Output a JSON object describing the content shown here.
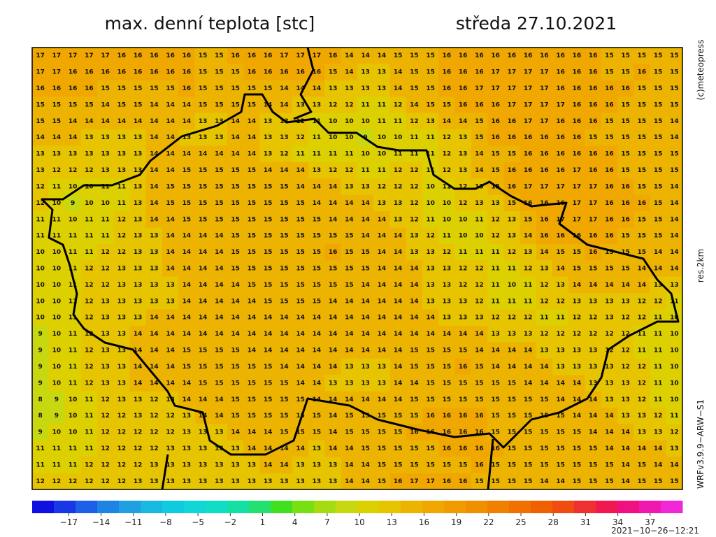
{
  "header": {
    "title": "max. denní teplota [stc]",
    "date": "středa 27.10.2021"
  },
  "side": {
    "copyright": "(c)meteopress",
    "resolution": "res.2km",
    "model": "WRFv3.9.9−ARW−S1"
  },
  "footer": {
    "timestamp": "2021−10−26−12:21"
  },
  "grid": {
    "values": [
      [
        17,
        17,
        17,
        17,
        17,
        16,
        16,
        16,
        16,
        16,
        15,
        15,
        16,
        16,
        16,
        17,
        17,
        17,
        16,
        14,
        14,
        14,
        15,
        15,
        15,
        16,
        16,
        16,
        16,
        16,
        16,
        16,
        16,
        16,
        16,
        15,
        15,
        15,
        15,
        15
      ],
      [
        17,
        17,
        16,
        16,
        16,
        16,
        16,
        16,
        16,
        16,
        15,
        15,
        15,
        16,
        16,
        16,
        16,
        16,
        15,
        14,
        13,
        13,
        14,
        15,
        15,
        16,
        16,
        16,
        17,
        17,
        17,
        17,
        16,
        16,
        16,
        15,
        15,
        16,
        15,
        15
      ],
      [
        16,
        16,
        16,
        16,
        15,
        15,
        15,
        15,
        15,
        16,
        15,
        15,
        15,
        15,
        15,
        14,
        14,
        14,
        13,
        13,
        13,
        13,
        14,
        15,
        15,
        16,
        16,
        17,
        17,
        17,
        17,
        17,
        16,
        16,
        16,
        16,
        16,
        15,
        15,
        15
      ],
      [
        15,
        15,
        15,
        15,
        14,
        15,
        15,
        14,
        14,
        14,
        15,
        15,
        15,
        15,
        14,
        14,
        13,
        13,
        12,
        12,
        11,
        11,
        12,
        14,
        15,
        15,
        16,
        16,
        16,
        17,
        17,
        17,
        17,
        16,
        16,
        16,
        15,
        15,
        15,
        15
      ],
      [
        15,
        15,
        14,
        14,
        14,
        14,
        14,
        14,
        14,
        14,
        13,
        13,
        14,
        14,
        13,
        13,
        12,
        11,
        10,
        10,
        10,
        11,
        11,
        12,
        13,
        14,
        14,
        15,
        16,
        16,
        17,
        17,
        16,
        16,
        16,
        15,
        15,
        15,
        15,
        14
      ],
      [
        14,
        14,
        14,
        13,
        13,
        13,
        13,
        14,
        14,
        13,
        13,
        13,
        14,
        14,
        13,
        13,
        12,
        11,
        10,
        10,
        9,
        10,
        10,
        11,
        11,
        12,
        13,
        15,
        16,
        16,
        16,
        16,
        16,
        16,
        15,
        15,
        15,
        15,
        15,
        14
      ],
      [
        13,
        13,
        13,
        13,
        13,
        13,
        13,
        14,
        14,
        14,
        14,
        14,
        14,
        14,
        13,
        12,
        11,
        11,
        11,
        11,
        10,
        10,
        11,
        11,
        11,
        12,
        13,
        14,
        15,
        15,
        16,
        16,
        16,
        16,
        16,
        16,
        15,
        15,
        15,
        15
      ],
      [
        13,
        12,
        12,
        12,
        13,
        13,
        13,
        14,
        14,
        15,
        15,
        15,
        15,
        15,
        14,
        14,
        14,
        13,
        12,
        12,
        11,
        11,
        12,
        12,
        11,
        12,
        13,
        14,
        15,
        16,
        16,
        16,
        16,
        17,
        16,
        16,
        15,
        15,
        15,
        15
      ],
      [
        12,
        11,
        10,
        10,
        11,
        11,
        13,
        14,
        15,
        15,
        15,
        15,
        15,
        15,
        15,
        15,
        14,
        14,
        14,
        13,
        13,
        12,
        12,
        12,
        10,
        11,
        12,
        13,
        15,
        16,
        17,
        17,
        17,
        17,
        17,
        16,
        16,
        15,
        15,
        14
      ],
      [
        12,
        10,
        9,
        10,
        10,
        11,
        13,
        14,
        15,
        15,
        15,
        15,
        15,
        15,
        15,
        15,
        15,
        14,
        14,
        14,
        14,
        13,
        13,
        12,
        10,
        10,
        12,
        13,
        13,
        15,
        16,
        16,
        16,
        17,
        17,
        16,
        16,
        16,
        15,
        14
      ],
      [
        11,
        11,
        10,
        11,
        11,
        12,
        13,
        14,
        14,
        15,
        15,
        15,
        15,
        15,
        15,
        15,
        15,
        15,
        14,
        14,
        14,
        14,
        13,
        12,
        11,
        10,
        10,
        11,
        12,
        13,
        15,
        16,
        17,
        17,
        17,
        16,
        16,
        15,
        15,
        14
      ],
      [
        11,
        11,
        11,
        11,
        11,
        12,
        13,
        13,
        14,
        14,
        14,
        14,
        15,
        15,
        15,
        15,
        15,
        15,
        15,
        15,
        14,
        14,
        14,
        13,
        12,
        11,
        10,
        10,
        12,
        13,
        14,
        16,
        16,
        16,
        16,
        16,
        15,
        15,
        15,
        14
      ],
      [
        10,
        10,
        11,
        11,
        12,
        12,
        13,
        13,
        14,
        14,
        14,
        14,
        15,
        15,
        15,
        15,
        15,
        15,
        16,
        15,
        15,
        14,
        14,
        13,
        13,
        12,
        11,
        11,
        11,
        12,
        13,
        14,
        15,
        15,
        16,
        15,
        15,
        15,
        14,
        14
      ],
      [
        10,
        10,
        11,
        12,
        12,
        13,
        13,
        13,
        14,
        14,
        14,
        14,
        15,
        15,
        15,
        15,
        15,
        15,
        15,
        15,
        15,
        14,
        14,
        14,
        13,
        13,
        12,
        12,
        11,
        11,
        12,
        13,
        14,
        15,
        15,
        15,
        15,
        14,
        14,
        14
      ],
      [
        10,
        10,
        11,
        12,
        12,
        13,
        13,
        13,
        13,
        14,
        14,
        14,
        14,
        15,
        15,
        15,
        15,
        15,
        15,
        15,
        14,
        14,
        14,
        14,
        13,
        13,
        12,
        12,
        11,
        10,
        11,
        12,
        13,
        14,
        14,
        14,
        14,
        14,
        13,
        13
      ],
      [
        10,
        10,
        11,
        12,
        13,
        13,
        13,
        13,
        13,
        14,
        14,
        14,
        14,
        14,
        15,
        15,
        15,
        15,
        14,
        14,
        14,
        14,
        14,
        14,
        13,
        13,
        13,
        12,
        11,
        11,
        11,
        12,
        12,
        13,
        13,
        13,
        13,
        12,
        12,
        11
      ],
      [
        10,
        10,
        11,
        12,
        13,
        13,
        13,
        14,
        14,
        14,
        14,
        14,
        14,
        14,
        14,
        14,
        14,
        14,
        14,
        14,
        14,
        14,
        14,
        14,
        14,
        13,
        13,
        13,
        12,
        12,
        12,
        11,
        11,
        12,
        12,
        13,
        12,
        12,
        11,
        10
      ],
      [
        9,
        10,
        11,
        12,
        13,
        13,
        14,
        14,
        14,
        14,
        14,
        14,
        14,
        14,
        14,
        14,
        14,
        14,
        14,
        14,
        14,
        14,
        14,
        14,
        14,
        14,
        14,
        14,
        13,
        13,
        13,
        12,
        12,
        12,
        12,
        12,
        12,
        11,
        11,
        10
      ],
      [
        9,
        10,
        11,
        12,
        13,
        13,
        14,
        14,
        14,
        15,
        15,
        15,
        15,
        14,
        14,
        14,
        14,
        14,
        14,
        14,
        14,
        14,
        14,
        15,
        15,
        15,
        15,
        14,
        14,
        14,
        14,
        13,
        13,
        13,
        13,
        12,
        12,
        11,
        11,
        10
      ],
      [
        9,
        10,
        11,
        12,
        13,
        13,
        14,
        14,
        14,
        15,
        15,
        15,
        15,
        15,
        15,
        14,
        14,
        14,
        14,
        13,
        13,
        13,
        14,
        15,
        15,
        15,
        16,
        15,
        14,
        14,
        14,
        14,
        13,
        13,
        13,
        13,
        12,
        12,
        11,
        10
      ],
      [
        9,
        10,
        11,
        12,
        13,
        13,
        14,
        14,
        14,
        14,
        15,
        15,
        15,
        15,
        15,
        15,
        14,
        14,
        13,
        13,
        13,
        13,
        14,
        14,
        15,
        15,
        15,
        15,
        15,
        15,
        14,
        14,
        14,
        14,
        13,
        13,
        13,
        12,
        11,
        10
      ],
      [
        8,
        9,
        10,
        11,
        12,
        13,
        13,
        12,
        13,
        14,
        14,
        14,
        15,
        15,
        15,
        15,
        15,
        14,
        14,
        14,
        14,
        14,
        14,
        15,
        15,
        15,
        15,
        15,
        15,
        15,
        15,
        15,
        14,
        14,
        14,
        13,
        13,
        12,
        11,
        10
      ],
      [
        8,
        9,
        10,
        11,
        12,
        12,
        13,
        12,
        12,
        13,
        14,
        14,
        15,
        15,
        15,
        15,
        15,
        15,
        14,
        15,
        15,
        15,
        15,
        15,
        16,
        16,
        16,
        16,
        15,
        15,
        15,
        15,
        15,
        14,
        14,
        14,
        13,
        13,
        12,
        11
      ],
      [
        9,
        10,
        10,
        11,
        12,
        12,
        12,
        12,
        12,
        13,
        13,
        13,
        14,
        14,
        14,
        15,
        15,
        15,
        14,
        15,
        15,
        15,
        15,
        16,
        16,
        16,
        16,
        16,
        15,
        15,
        15,
        15,
        15,
        15,
        14,
        14,
        14,
        13,
        13,
        12
      ],
      [
        11,
        11,
        11,
        11,
        12,
        12,
        12,
        12,
        13,
        13,
        13,
        13,
        13,
        14,
        14,
        14,
        14,
        13,
        14,
        14,
        15,
        15,
        15,
        15,
        15,
        16,
        16,
        16,
        16,
        15,
        15,
        15,
        15,
        15,
        15,
        14,
        14,
        14,
        14,
        13
      ],
      [
        11,
        11,
        11,
        12,
        12,
        12,
        12,
        13,
        13,
        13,
        13,
        13,
        13,
        13,
        14,
        14,
        13,
        13,
        13,
        14,
        14,
        15,
        15,
        15,
        15,
        15,
        15,
        16,
        15,
        15,
        15,
        15,
        15,
        15,
        15,
        15,
        14,
        15,
        14,
        14
      ],
      [
        12,
        12,
        12,
        12,
        12,
        12,
        13,
        13,
        13,
        13,
        13,
        13,
        13,
        13,
        13,
        13,
        13,
        13,
        13,
        14,
        14,
        15,
        16,
        17,
        17,
        16,
        16,
        15,
        15,
        15,
        15,
        14,
        14,
        15,
        15,
        15,
        14,
        15,
        15,
        15
      ]
    ]
  },
  "colorbar": {
    "lim": [
      -20.4,
      40
    ],
    "ticks": [
      {
        "value": -17,
        "label": "−17"
      },
      {
        "value": -14,
        "label": "−14"
      },
      {
        "value": -11,
        "label": "−11"
      },
      {
        "value": -8,
        "label": "−8"
      },
      {
        "value": -5,
        "label": "−5"
      },
      {
        "value": -2,
        "label": "−2"
      },
      1,
      4,
      7,
      10,
      13,
      16,
      19,
      22,
      25,
      28,
      31,
      34,
      37
    ],
    "colors": [
      "#1010e0",
      "#1838e8",
      "#1c60e8",
      "#1e84e4",
      "#20a0e0",
      "#18b8e0",
      "#10cae0",
      "#10d6d8",
      "#10dec4",
      "#14e0a4",
      "#24e070",
      "#40e020",
      "#78e010",
      "#a4dc10",
      "#c8d810",
      "#dcd000",
      "#e6c400",
      "#ecb400",
      "#f0a800",
      "#f09c00",
      "#f09000",
      "#f08000",
      "#f07000",
      "#f06000",
      "#f04c10",
      "#f03030",
      "#f01850",
      "#f01080",
      "#f018b0",
      "#f028d8"
    ]
  }
}
